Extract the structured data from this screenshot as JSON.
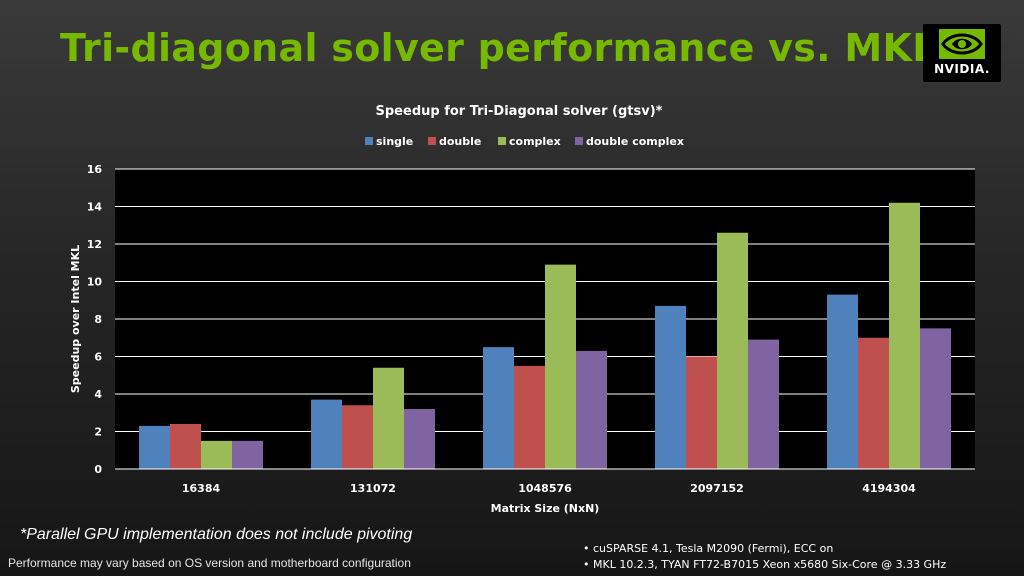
{
  "slide": {
    "title": "Tri-diagonal solver performance vs. MKL",
    "logo_text": "NVIDIA.",
    "footnote": "*Parallel GPU implementation does not include pivoting",
    "disclaimer": "Performance may vary based on OS version and motherboard configuration",
    "config": [
      "• cuSPARSE 4.1, Tesla M2090 (Fermi), ECC on",
      "• MKL 10.2.3, TYAN FT72-B7015 Xeon x5680 Six-Core @ 3.33 GHz"
    ]
  },
  "colors": {
    "title": "#76b900",
    "plot_background": "#000000",
    "gridline": "#ffffff"
  },
  "chart_data": {
    "type": "bar",
    "title": "Speedup for Tri-Diagonal solver (gtsv)*",
    "xlabel": "Matrix Size (NxN)",
    "ylabel": "Speedup over Intel MKL",
    "categories": [
      "16384",
      "131072",
      "1048576",
      "2097152",
      "4194304"
    ],
    "ylim": [
      0,
      16
    ],
    "yticks": [
      0,
      2,
      4,
      6,
      8,
      10,
      12,
      14,
      16
    ],
    "grid": true,
    "legend_position": "top",
    "series": [
      {
        "name": "single",
        "color": "#4f81bd",
        "values": [
          2.3,
          3.7,
          6.5,
          8.7,
          9.3
        ]
      },
      {
        "name": "double",
        "color": "#c0504d",
        "values": [
          2.4,
          3.4,
          5.5,
          6.0,
          7.0
        ]
      },
      {
        "name": "complex",
        "color": "#9bbb59",
        "values": [
          1.5,
          5.4,
          10.9,
          12.6,
          14.2
        ]
      },
      {
        "name": "double complex",
        "color": "#8064a2",
        "values": [
          1.5,
          3.2,
          6.3,
          6.9,
          7.5
        ]
      }
    ]
  }
}
